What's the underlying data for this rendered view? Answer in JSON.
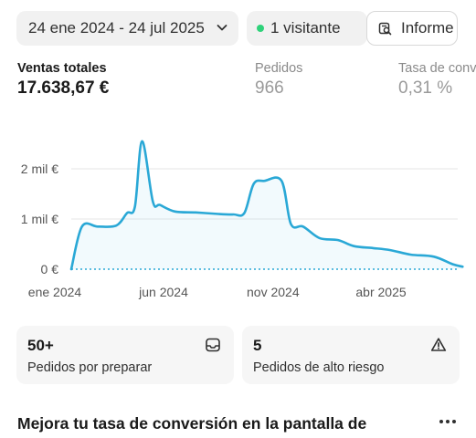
{
  "toolbar": {
    "date_range": "24 ene 2024 - 24 jul 2025",
    "visitors": "1 visitante",
    "report_label": "Informe"
  },
  "metrics": [
    {
      "label": "Ventas totales",
      "value": "17.638,67 €"
    },
    {
      "label": "Pedidos",
      "value": "966"
    },
    {
      "label": "Tasa de conv",
      "value": "0,31 %"
    }
  ],
  "colors": {
    "line": "#2aa8d6",
    "dot": "#2fd27a",
    "grid": "#e6e6e6"
  },
  "chart_data": {
    "type": "area",
    "title": "",
    "xlabel": "",
    "ylabel": "",
    "yticks": [
      "0 €",
      "1 mil €",
      "2 mil €"
    ],
    "ylim": [
      0,
      2700
    ],
    "xlim": [
      "2024-01-24",
      "2025-07-24"
    ],
    "xticks": [
      {
        "date": "2024-01-01",
        "label": "ene 2024"
      },
      {
        "date": "2024-06-01",
        "label": "jun 2024"
      },
      {
        "date": "2024-11-01",
        "label": "nov 2024"
      },
      {
        "date": "2025-04-01",
        "label": "abr 2025"
      }
    ],
    "grid": true,
    "series": [
      {
        "x": [
          "2024-01-24",
          "2024-02-08",
          "2024-03-01",
          "2024-03-27",
          "2024-04-11",
          "2024-04-22",
          "2024-05-02",
          "2024-05-17",
          "2024-05-27",
          "2024-06-17",
          "2024-07-16",
          "2024-08-17",
          "2024-09-07",
          "2024-09-22",
          "2024-10-05",
          "2024-10-20",
          "2024-11-13",
          "2024-11-26",
          "2024-12-13",
          "2025-01-05",
          "2025-01-31",
          "2025-02-22",
          "2025-03-21",
          "2025-04-14",
          "2025-05-13",
          "2025-06-14",
          "2025-07-10",
          "2025-07-24"
        ],
        "values": [
          0,
          850,
          850,
          870,
          1120,
          1250,
          2550,
          1350,
          1280,
          1150,
          1130,
          1100,
          1090,
          1120,
          1700,
          1760,
          1760,
          900,
          850,
          620,
          580,
          460,
          420,
          380,
          290,
          250,
          100,
          50
        ]
      }
    ]
  },
  "cards": [
    {
      "number": "50+",
      "label": "Pedidos por preparar",
      "icon": "inbox-icon"
    },
    {
      "number": "5",
      "label": "Pedidos de alto riesgo",
      "icon": "warning-icon"
    }
  ],
  "section": {
    "title": "Mejora tu tasa de conversión en la pantalla de"
  }
}
